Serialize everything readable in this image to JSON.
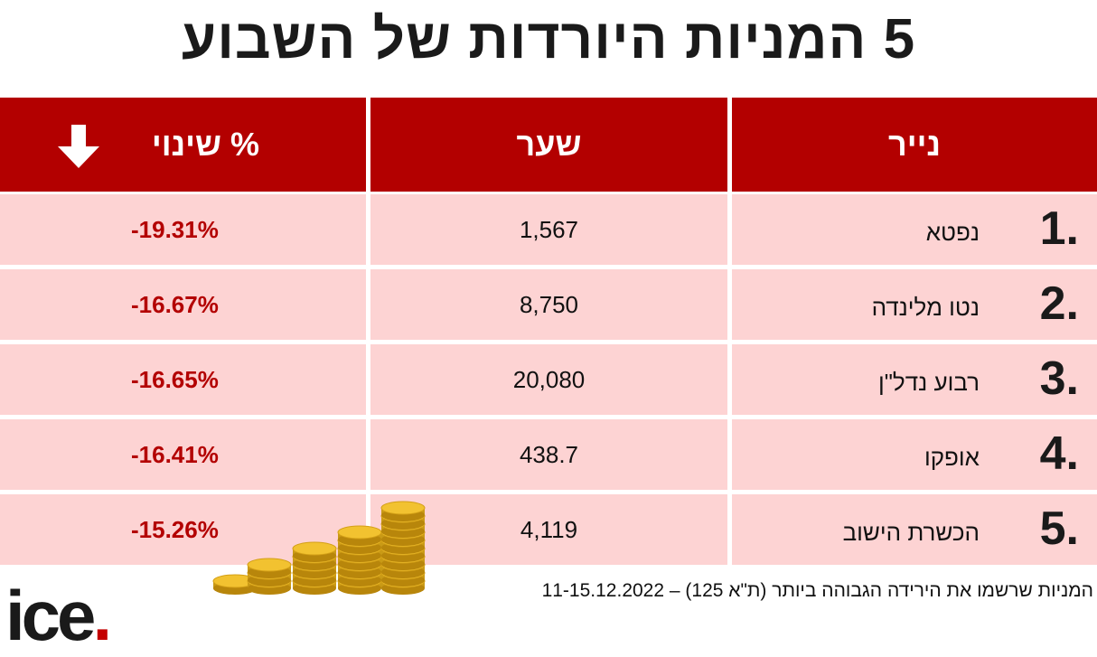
{
  "header": {
    "title": "5 המניות היורדות של השבוע"
  },
  "table": {
    "columns": [
      "נייר",
      "שער",
      "% שינוי"
    ],
    "rows": [
      {
        "rank": "1.",
        "name": "נפטא",
        "price": "1,567",
        "change": "-19.31%"
      },
      {
        "rank": "2.",
        "name": "נטו מלינדה",
        "price": "8,750",
        "change": "-16.67%"
      },
      {
        "rank": "3.",
        "name": "רבוע נדל\"ן",
        "price": "20,080",
        "change": "-16.65%"
      },
      {
        "rank": "4.",
        "name": "אופקו",
        "price": "438.7",
        "change": "-16.41%"
      },
      {
        "rank": "5.",
        "name": "הכשרת הישוב",
        "price": "4,119",
        "change": "-15.26%"
      }
    ]
  },
  "footer": {
    "note": "המניות שרשמו את הירידה הגבוהה ביותר (ת\"א 125) – 11-15.12.2022",
    "logo": "ice"
  }
}
